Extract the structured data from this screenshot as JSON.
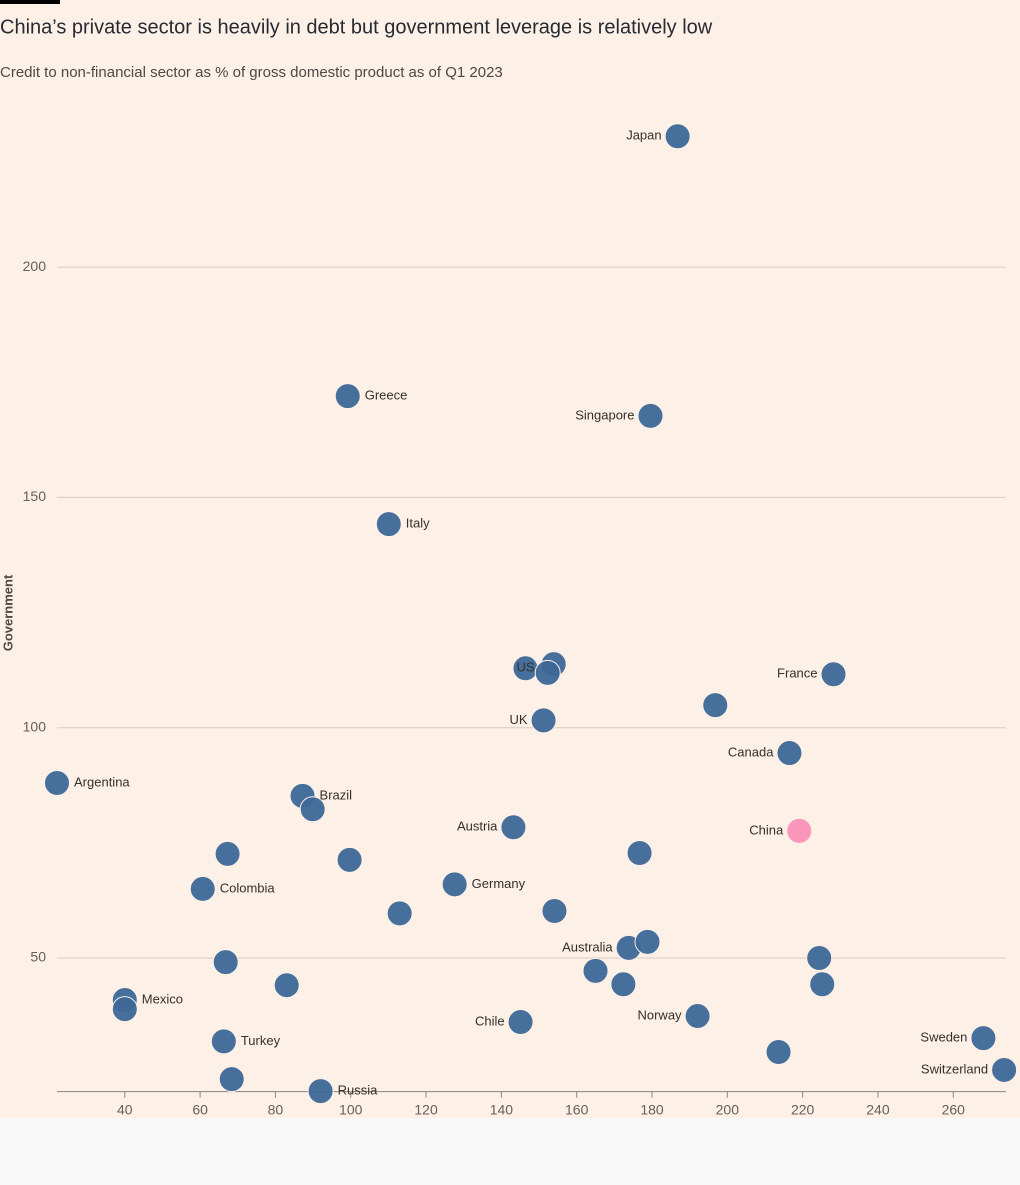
{
  "chart_data": {
    "type": "scatter",
    "title": "China’s private sector is heavily in debt but government leverage is relatively low",
    "subtitle": "Credit to non-financial sector as % of gross domestic product as of Q1 2023",
    "ylabel": "Government",
    "xlim": [
      22,
      274
    ],
    "ylim": [
      21,
      234
    ],
    "xticks": [
      40,
      60,
      80,
      100,
      120,
      140,
      160,
      180,
      200,
      220,
      240,
      260
    ],
    "yticks": [
      50,
      100,
      150,
      200
    ],
    "grid": true,
    "color": "#3d6797",
    "highlight_color": "#f990b6",
    "series": [
      {
        "labels": [
          "Japan",
          "Greece",
          "Singapore",
          "Italy",
          "US",
          null,
          null,
          "France",
          null,
          "UK",
          "Canada",
          "Argentina",
          "Brazil",
          null,
          "Austria",
          "China",
          null,
          null,
          null,
          "Colombia",
          "Germany",
          null,
          null,
          "Australia",
          null,
          null,
          null,
          null,
          null,
          null,
          null,
          "Mexico",
          null,
          "Chile",
          "Norway",
          "Sweden",
          "Turkey",
          null,
          "Switzerland",
          null,
          "Russia"
        ],
        "x": [
          186.8,
          99.2,
          179.6,
          110.1,
          146.4,
          153.9,
          152.3,
          228.2,
          196.8,
          151.2,
          216.5,
          22.0,
          87.2,
          89.9,
          143.2,
          219.1,
          67.3,
          176.7,
          99.7,
          60.7,
          127.6,
          113.0,
          154.1,
          173.8,
          178.8,
          224.4,
          66.8,
          165.0,
          83.0,
          172.4,
          225.2,
          40.0,
          40.0,
          145.1,
          192.1,
          268.0,
          66.3,
          213.6,
          273.5,
          68.4,
          92.0
        ],
        "y": [
          228.4,
          172.0,
          167.7,
          144.2,
          112.9,
          113.8,
          111.9,
          111.6,
          104.9,
          101.6,
          94.5,
          88.0,
          85.2,
          82.3,
          78.4,
          77.6,
          72.6,
          72.8,
          71.3,
          65.0,
          66.0,
          59.7,
          60.2,
          52.2,
          53.5,
          50.0,
          49.1,
          47.2,
          44.1,
          44.3,
          44.3,
          40.9,
          38.9,
          36.1,
          37.4,
          32.6,
          31.9,
          29.6,
          25.7,
          23.7,
          21.1
        ],
        "highlight": [
          false,
          false,
          false,
          false,
          false,
          false,
          false,
          false,
          false,
          false,
          false,
          false,
          false,
          false,
          false,
          true,
          false,
          false,
          false,
          false,
          false,
          false,
          false,
          false,
          false,
          false,
          false,
          false,
          false,
          false,
          false,
          false,
          false,
          false,
          false,
          false,
          false,
          false,
          false,
          false,
          false
        ]
      }
    ]
  }
}
